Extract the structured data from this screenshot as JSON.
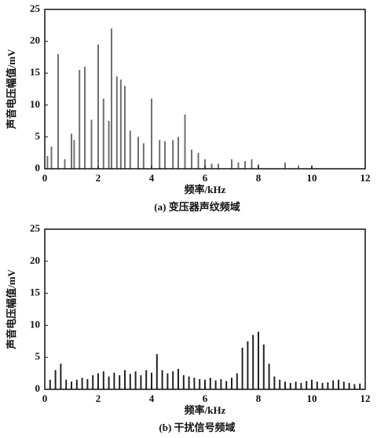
{
  "chart_data": [
    {
      "type": "bar",
      "title": "(a) 变压器声纹频域",
      "xlabel": "频率/kHz",
      "ylabel": "声音电压幅值/mV",
      "color": "#707070",
      "x": [
        0.1,
        0.25,
        0.5,
        0.75,
        1.0,
        1.1,
        1.3,
        1.5,
        1.75,
        2.0,
        2.2,
        2.4,
        2.5,
        2.7,
        2.85,
        3.0,
        3.2,
        3.5,
        3.7,
        4.0,
        4.3,
        4.5,
        4.8,
        5.0,
        5.25,
        5.5,
        5.75,
        6.0,
        6.25,
        6.5,
        7.0,
        7.25,
        7.5,
        7.75,
        8.0,
        9.0,
        9.5,
        10.0
      ],
      "values": [
        2,
        3.5,
        18,
        1.5,
        5.5,
        4.5,
        15.5,
        16,
        7.7,
        19.5,
        11,
        7.5,
        22,
        14.5,
        14,
        13,
        6,
        5,
        4,
        11,
        4.5,
        4.3,
        4.5,
        5,
        8.5,
        3,
        2.5,
        1.5,
        0.8,
        0.8,
        1.5,
        1,
        1.2,
        1.5,
        0.7,
        1,
        0.5,
        0.5
      ],
      "xlim": [
        0,
        12
      ],
      "ylim": [
        0,
        25
      ],
      "xticks": [
        0,
        2,
        4,
        6,
        8,
        10,
        12
      ],
      "yticks": [
        0,
        5,
        10,
        15,
        20,
        25
      ]
    },
    {
      "type": "bar",
      "title": "(b) 干扰信号频域",
      "xlabel": "频率/kHz",
      "ylabel": "声音电压幅值/mV",
      "color": "#222222",
      "x": [
        0.2,
        0.4,
        0.6,
        0.8,
        1.0,
        1.2,
        1.4,
        1.6,
        1.8,
        2.0,
        2.2,
        2.4,
        2.6,
        2.8,
        3.0,
        3.2,
        3.4,
        3.6,
        3.8,
        4.0,
        4.2,
        4.4,
        4.6,
        4.8,
        5.0,
        5.2,
        5.4,
        5.6,
        5.8,
        6.0,
        6.2,
        6.4,
        6.6,
        6.8,
        7.0,
        7.2,
        7.4,
        7.6,
        7.8,
        8.0,
        8.2,
        8.4,
        8.6,
        8.8,
        9.0,
        9.2,
        9.4,
        9.6,
        9.8,
        10.0,
        10.2,
        10.4,
        10.6,
        10.8,
        11.0,
        11.2,
        11.4,
        11.6,
        11.8
      ],
      "values": [
        1.5,
        3,
        4,
        1.5,
        1.2,
        1.5,
        1.8,
        1.6,
        2.2,
        2.5,
        2.8,
        2,
        2.6,
        2.2,
        3,
        2.4,
        2.8,
        2.2,
        3,
        2.6,
        5.5,
        3,
        2.5,
        2.8,
        3.2,
        2.2,
        2,
        1.8,
        1.6,
        1.5,
        1.8,
        1.4,
        1.6,
        1.3,
        1.8,
        2.5,
        6.5,
        7.5,
        8.5,
        9,
        7,
        4,
        2,
        1.5,
        1.2,
        1,
        1.2,
        1,
        1.3,
        1.5,
        1.2,
        1,
        1.1,
        1.4,
        1.5,
        1.2,
        1,
        0.8,
        0.9
      ],
      "xlim": [
        0,
        12
      ],
      "ylim": [
        0,
        25
      ],
      "xticks": [
        0,
        2,
        4,
        6,
        8,
        10,
        12
      ],
      "yticks": [
        0,
        5,
        10,
        15,
        20,
        25
      ]
    }
  ]
}
